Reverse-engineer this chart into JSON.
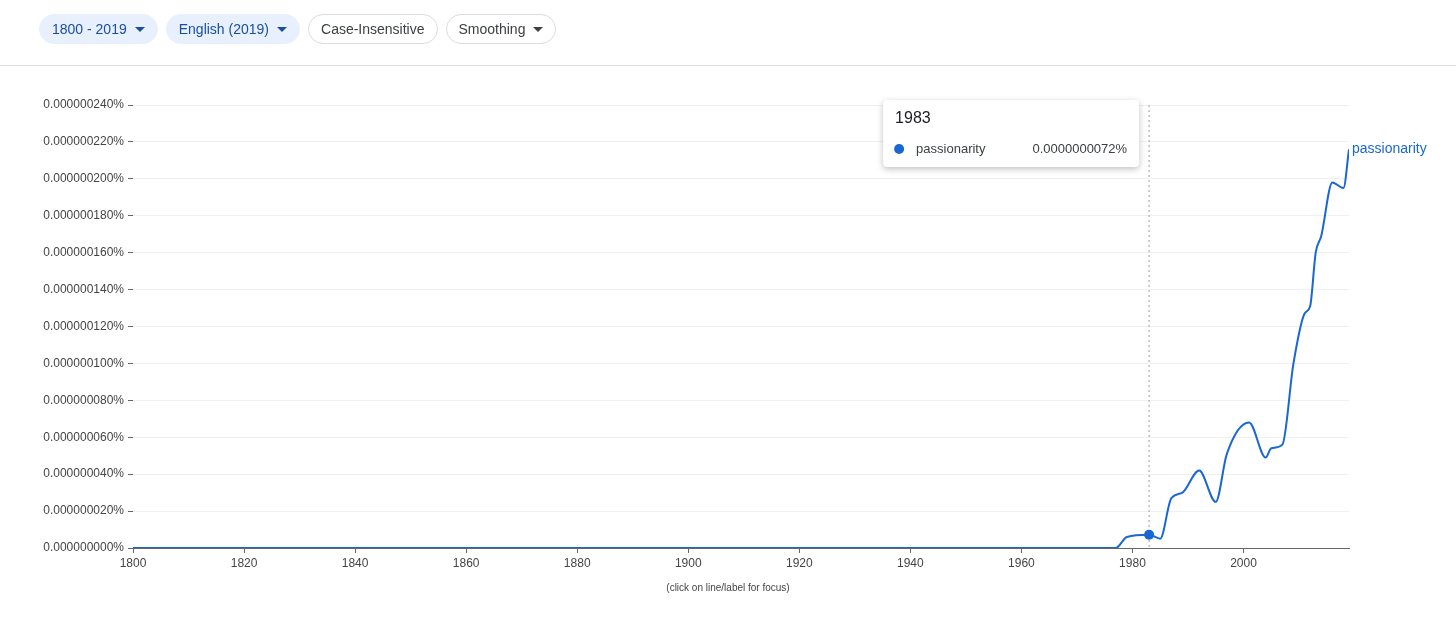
{
  "chart_data": {
    "type": "line",
    "xlim": [
      1800,
      2019
    ],
    "xticks": [
      1800,
      1820,
      1840,
      1860,
      1880,
      1900,
      1920,
      1940,
      1960,
      1980,
      2000
    ],
    "ylim": [
      0,
      2.4e-07
    ],
    "yticks": [
      {
        "value": 0,
        "label": "0.000000000%"
      },
      {
        "value": 2e-08,
        "label": "0.000000020%"
      },
      {
        "value": 4e-08,
        "label": "0.000000040%"
      },
      {
        "value": 6e-08,
        "label": "0.000000060%"
      },
      {
        "value": 8e-08,
        "label": "0.000000080%"
      },
      {
        "value": 1e-07,
        "label": "0.000000100%"
      },
      {
        "value": 1.2e-07,
        "label": "0.000000120%"
      },
      {
        "value": 1.4e-07,
        "label": "0.000000140%"
      },
      {
        "value": 1.6e-07,
        "label": "0.000000160%"
      },
      {
        "value": 1.8e-07,
        "label": "0.000000180%"
      },
      {
        "value": 2e-07,
        "label": "0.000000200%"
      },
      {
        "value": 2.2e-07,
        "label": "0.000000220%"
      },
      {
        "value": 2.4e-07,
        "label": "0.000000240%"
      }
    ],
    "grid": "y",
    "legend": "top right",
    "marker": "none",
    "line_style": "solid",
    "series": [
      {
        "name": "passionarity",
        "color": "#1967d2",
        "x": [
          1800,
          1977,
          1979,
          1983,
          1985,
          1987,
          1989,
          1992,
          1995,
          1997,
          2001,
          2004,
          2005,
          2007,
          2009,
          2011,
          2012,
          2013,
          2014,
          2016,
          2018,
          2019
        ],
        "values": [
          0,
          0,
          6e-09,
          7.2e-09,
          5e-09,
          2.7e-08,
          3e-08,
          4.2e-08,
          2.5e-08,
          5.1e-08,
          6.8e-08,
          4.9e-08,
          5.4e-08,
          5.6e-08,
          1e-07,
          1.27e-07,
          1.31e-07,
          1.6e-07,
          1.69e-07,
          1.98e-07,
          1.95e-07,
          2.16e-07
        ]
      }
    ],
    "ref_lines": [
      {
        "axis": "x",
        "value": 1983,
        "color": "#9e9e9e",
        "line_style": "dotted"
      }
    ],
    "annotations": [
      "1800 - 2019",
      "English (2019)",
      "Case-Insensitive",
      "Smoothing",
      "1983",
      "0.0000000072%",
      "(click on line/label for focus)"
    ]
  }
}
